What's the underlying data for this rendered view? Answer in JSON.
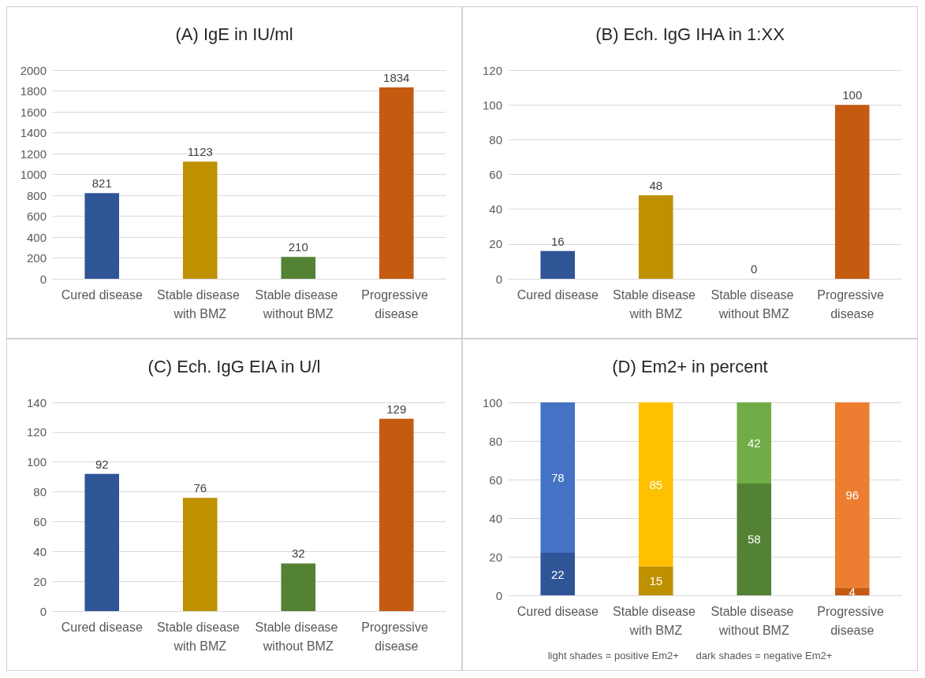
{
  "chart_data": [
    {
      "type": "bar",
      "title": "(A) IgE in IU/ml",
      "categories": [
        "Cured disease",
        "Stable disease with BMZ",
        "Stable disease without BMZ",
        "Progressive disease"
      ],
      "values": [
        821,
        1123,
        210,
        1834
      ],
      "colors": [
        "#2f5597",
        "#bf9000",
        "#548235",
        "#c55a11"
      ],
      "ylim": [
        0,
        2000
      ],
      "yticks": [
        0,
        200,
        400,
        600,
        800,
        1000,
        1200,
        1400,
        1600,
        1800,
        2000
      ],
      "grid": "y",
      "data_labels": true
    },
    {
      "type": "bar",
      "title": "(B) Ech. IgG IHA in 1:XX",
      "categories": [
        "Cured disease",
        "Stable disease with BMZ",
        "Stable disease without BMZ",
        "Progressive disease"
      ],
      "values": [
        16,
        48,
        0,
        100
      ],
      "colors": [
        "#2f5597",
        "#bf9000",
        "#548235",
        "#c55a11"
      ],
      "ylim": [
        0,
        120
      ],
      "yticks": [
        0,
        20,
        40,
        60,
        80,
        100,
        120
      ],
      "grid": "y",
      "data_labels": true
    },
    {
      "type": "bar",
      "title": "(C) Ech. IgG EIA in U/l",
      "categories": [
        "Cured disease",
        "Stable disease with BMZ",
        "Stable disease without BMZ",
        "Progressive disease"
      ],
      "values": [
        92,
        76,
        32,
        129
      ],
      "colors": [
        "#2f5597",
        "#bf9000",
        "#548235",
        "#c55a11"
      ],
      "ylim": [
        0,
        140
      ],
      "yticks": [
        0,
        20,
        40,
        60,
        80,
        100,
        120,
        140
      ],
      "grid": "y",
      "data_labels": true
    },
    {
      "type": "bar",
      "title": "(D) Em2+ in percent",
      "categories": [
        "Cured disease",
        "Stable disease with BMZ",
        "Stable disease without BMZ",
        "Progressive disease"
      ],
      "stacked": true,
      "series": [
        {
          "values": [
            22,
            15,
            58,
            4
          ],
          "colors": [
            "#2f5597",
            "#bf9000",
            "#548235",
            "#c55a11"
          ]
        },
        {
          "values": [
            78,
            85,
            42,
            96
          ],
          "colors": [
            "#4472c4",
            "#ffc000",
            "#70ad47",
            "#ed7d31"
          ]
        }
      ],
      "ylim": [
        0,
        100
      ],
      "yticks": [
        0,
        20,
        40,
        60,
        80,
        100
      ],
      "grid": "y",
      "data_labels": true,
      "annotations": [
        "light shades = positive Em2+      dark shades = negative Em2+"
      ]
    }
  ]
}
